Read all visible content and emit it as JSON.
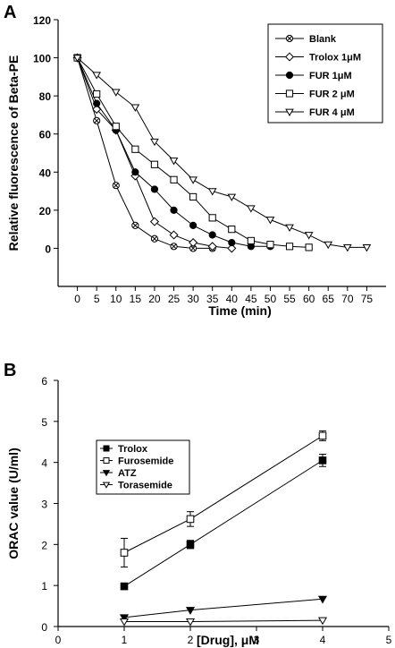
{
  "chart_data": [
    {
      "panel": "A",
      "type": "line",
      "xlabel": "Time (min)",
      "ylabel": "Relative fluorescence of Beta-PE",
      "xlim": [
        -5,
        80
      ],
      "ylim": [
        -20,
        120
      ],
      "x_ticks": [
        "0",
        "5",
        "10",
        "15",
        "20",
        "25",
        "30",
        "35",
        "40",
        "45",
        "50",
        "55",
        "60",
        "65",
        "70",
        "75"
      ],
      "y_ticks": [
        "0",
        "20",
        "40",
        "60",
        "80",
        "100",
        "120"
      ],
      "legend_position": "top-right",
      "series": [
        {
          "name": "Blank",
          "marker": "circle-cross",
          "x": [
            0,
            5,
            10,
            15,
            20,
            25,
            30,
            35
          ],
          "y": [
            100,
            67,
            33,
            12,
            5,
            1,
            0,
            0
          ]
        },
        {
          "name": "Trolox 1μM",
          "marker": "diamond",
          "x": [
            0,
            5,
            10,
            15,
            20,
            25,
            30,
            35,
            40
          ],
          "y": [
            100,
            73,
            62,
            38,
            14,
            7,
            3,
            1,
            0
          ]
        },
        {
          "name": "FUR 1μM",
          "marker": "filled-circle",
          "x": [
            0,
            5,
            10,
            15,
            20,
            25,
            30,
            35,
            40,
            45,
            50
          ],
          "y": [
            100,
            76,
            62,
            40,
            31,
            20,
            12,
            7,
            3,
            1,
            1
          ]
        },
        {
          "name": "FUR 2 μM",
          "marker": "square",
          "x": [
            0,
            5,
            10,
            15,
            20,
            25,
            30,
            35,
            40,
            45,
            50,
            55,
            60
          ],
          "y": [
            100,
            81,
            64,
            52,
            44,
            36,
            27,
            16,
            10,
            4,
            2,
            1,
            0.5
          ]
        },
        {
          "name": "FUR 4 μM",
          "marker": "triangle-down",
          "x": [
            0,
            5,
            10,
            15,
            20,
            25,
            30,
            35,
            40,
            45,
            50,
            55,
            60,
            65,
            70,
            75
          ],
          "y": [
            100,
            91,
            82,
            74,
            56,
            46,
            36,
            30,
            27,
            21,
            15,
            11,
            7,
            2,
            0.5,
            0.5
          ]
        }
      ]
    },
    {
      "panel": "B",
      "type": "line",
      "xlabel": "[Drug], μM",
      "ylabel": "ORAC value (U/ml)",
      "xlim": [
        0,
        5
      ],
      "ylim": [
        0,
        6
      ],
      "x_ticks": [
        "0",
        "1",
        "2",
        "3",
        "4",
        "5"
      ],
      "y_ticks": [
        "0",
        "1",
        "2",
        "3",
        "4",
        "5",
        "6"
      ],
      "legend_position": "top-left",
      "series": [
        {
          "name": "Trolox",
          "marker": "filled-square",
          "x": [
            1,
            2,
            4
          ],
          "y": [
            0.98,
            2.0,
            4.05
          ],
          "err": [
            0.05,
            0.1,
            0.15
          ]
        },
        {
          "name": "Furosemide",
          "marker": "square",
          "x": [
            1,
            2,
            4
          ],
          "y": [
            1.8,
            2.62,
            4.65
          ],
          "err": [
            0.35,
            0.18,
            0.12
          ]
        },
        {
          "name": "ATZ",
          "marker": "filled-triangle-down",
          "x": [
            1,
            2,
            4
          ],
          "y": [
            0.22,
            0.4,
            0.67
          ],
          "err": [
            0,
            0,
            0
          ]
        },
        {
          "name": "Torasemide",
          "marker": "triangle-down",
          "x": [
            1,
            2,
            4
          ],
          "y": [
            0.12,
            0.12,
            0.15
          ],
          "err": [
            0,
            0,
            0
          ]
        }
      ]
    }
  ]
}
